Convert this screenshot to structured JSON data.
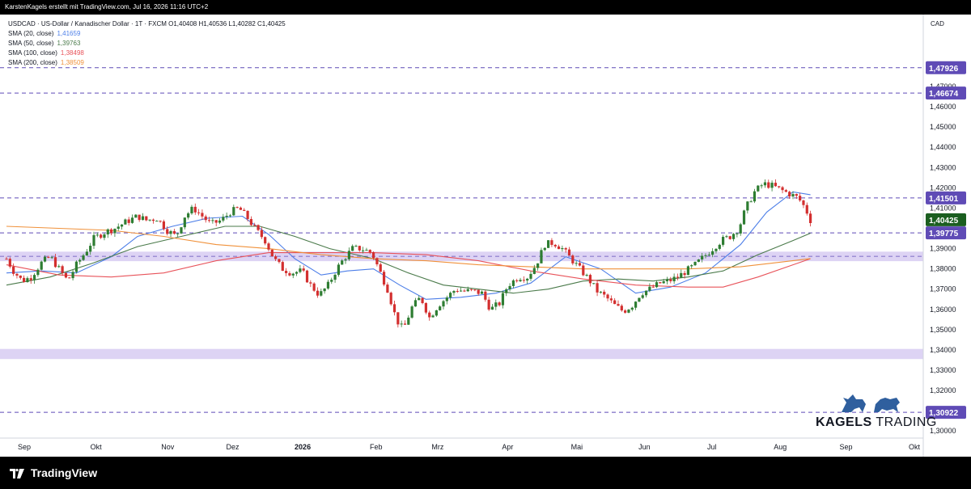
{
  "header": {
    "caption": "KarstenKagels erstellt mit TradingView.com, Jul 16, 2026 11:16 UTC+2"
  },
  "legend": {
    "symbol_line": "USDCAD · US-Dollar / Kanadischer Dollar · 1T · FXCM  O1,40408  H1,40536  L1,40282  C1,40425",
    "items": [
      {
        "label": "SMA (20, close)",
        "value": "1,41659",
        "color": "#4c7ee8"
      },
      {
        "label": "SMA (50, close)",
        "value": "1,39763",
        "color": "#4a7a4a"
      },
      {
        "label": "SMA (100, close)",
        "value": "1,38498",
        "color": "#e8535a"
      },
      {
        "label": "SMA (200, close)",
        "value": "1,38509",
        "color": "#f0913a"
      }
    ]
  },
  "brand": {
    "logo_text_bold": "KAGELS",
    "logo_text_thin": " TRADING",
    "platform": "TradingView"
  },
  "colors": {
    "up": "#26a69a",
    "down": "#ef5350",
    "up_candle": "#2e7d32",
    "down_candle": "#d32f2f",
    "zone": "#d1c4f0",
    "hline": "#5f4bb6"
  },
  "chart_data": {
    "type": "candlestick",
    "currency": "CAD",
    "ylim": [
      1.2965,
      1.5055
    ],
    "y_ticks": [
      "1,47000",
      "1,46000",
      "1,45000",
      "1,44000",
      "1,43000",
      "1,42000",
      "1,41000",
      "1,39000",
      "1,38000",
      "1,37000",
      "1,36000",
      "1,35000",
      "1,34000",
      "1,33000",
      "1,32000",
      "1,31000",
      "1,30000"
    ],
    "y_tick_values": [
      1.47,
      1.46,
      1.45,
      1.44,
      1.43,
      1.42,
      1.41,
      1.39,
      1.38,
      1.37,
      1.36,
      1.35,
      1.34,
      1.33,
      1.32,
      1.31,
      1.3
    ],
    "x_labels": [
      {
        "text": "Sep",
        "pos": 0.03,
        "bold": false
      },
      {
        "text": "Okt",
        "pos": 0.115,
        "bold": false
      },
      {
        "text": "Nov",
        "pos": 0.2,
        "bold": false
      },
      {
        "text": "Dez",
        "pos": 0.277,
        "bold": false
      },
      {
        "text": "2026",
        "pos": 0.36,
        "bold": true
      },
      {
        "text": "Feb",
        "pos": 0.447,
        "bold": false
      },
      {
        "text": "Mrz",
        "pos": 0.52,
        "bold": false
      },
      {
        "text": "Apr",
        "pos": 0.603,
        "bold": false
      },
      {
        "text": "Mai",
        "pos": 0.685,
        "bold": false
      },
      {
        "text": "Jun",
        "pos": 0.765,
        "bold": false
      },
      {
        "text": "Jul",
        "pos": 0.845,
        "bold": false
      },
      {
        "text": "Aug",
        "pos": 0.926,
        "bold": false
      },
      {
        "text": "Sep",
        "pos": 1.004,
        "bold": false
      },
      {
        "text": "Okt",
        "pos": 1.085,
        "bold": false
      }
    ],
    "levels": [
      {
        "value": 1.47926,
        "label": "1,47926"
      },
      {
        "value": 1.46674,
        "label": "1,46674"
      },
      {
        "value": 1.41501,
        "label": "1,41501"
      },
      {
        "value": 1.39775,
        "label": "1,39775"
      },
      {
        "value": 1.30922,
        "label": "1,30922"
      }
    ],
    "current_price": {
      "value": 1.40425,
      "label": "1,40425"
    },
    "zones": [
      {
        "from": 1.3838,
        "to": 1.3885
      },
      {
        "from": 1.3355,
        "to": 1.3405
      }
    ],
    "price_path": [
      [
        0.0,
        1.385
      ],
      [
        0.008,
        1.379
      ],
      [
        0.018,
        1.374
      ],
      [
        0.028,
        1.376
      ],
      [
        0.04,
        1.383
      ],
      [
        0.05,
        1.386
      ],
      [
        0.06,
        1.38
      ],
      [
        0.07,
        1.374
      ],
      [
        0.08,
        1.382
      ],
      [
        0.09,
        1.388
      ],
      [
        0.1,
        1.395
      ],
      [
        0.112,
        1.398
      ],
      [
        0.124,
        1.4
      ],
      [
        0.136,
        1.403
      ],
      [
        0.15,
        1.406
      ],
      [
        0.16,
        1.404
      ],
      [
        0.172,
        1.405
      ],
      [
        0.184,
        1.399
      ],
      [
        0.194,
        1.396
      ],
      [
        0.204,
        1.406
      ],
      [
        0.214,
        1.41
      ],
      [
        0.224,
        1.406
      ],
      [
        0.234,
        1.402
      ],
      [
        0.246,
        1.404
      ],
      [
        0.256,
        1.408
      ],
      [
        0.266,
        1.41
      ],
      [
        0.276,
        1.405
      ],
      [
        0.286,
        1.399
      ],
      [
        0.296,
        1.394
      ],
      [
        0.306,
        1.385
      ],
      [
        0.316,
        1.38
      ],
      [
        0.326,
        1.378
      ],
      [
        0.338,
        1.379
      ],
      [
        0.348,
        1.372
      ],
      [
        0.358,
        1.367
      ],
      [
        0.368,
        1.372
      ],
      [
        0.378,
        1.38
      ],
      [
        0.386,
        1.385
      ],
      [
        0.396,
        1.39
      ],
      [
        0.406,
        1.39
      ],
      [
        0.418,
        1.388
      ],
      [
        0.426,
        1.38
      ],
      [
        0.436,
        1.37
      ],
      [
        0.446,
        1.355
      ],
      [
        0.454,
        1.35
      ],
      [
        0.464,
        1.361
      ],
      [
        0.474,
        1.366
      ],
      [
        0.484,
        1.356
      ],
      [
        0.494,
        1.362
      ],
      [
        0.504,
        1.366
      ],
      [
        0.514,
        1.37
      ],
      [
        0.524,
        1.369
      ],
      [
        0.534,
        1.369
      ],
      [
        0.544,
        1.368
      ],
      [
        0.554,
        1.36
      ],
      [
        0.564,
        1.363
      ],
      [
        0.574,
        1.372
      ],
      [
        0.586,
        1.376
      ],
      [
        0.596,
        1.376
      ],
      [
        0.606,
        1.382
      ],
      [
        0.616,
        1.392
      ],
      [
        0.626,
        1.393
      ],
      [
        0.636,
        1.39
      ],
      [
        0.646,
        1.385
      ],
      [
        0.656,
        1.38
      ],
      [
        0.666,
        1.375
      ],
      [
        0.676,
        1.369
      ],
      [
        0.686,
        1.366
      ],
      [
        0.696,
        1.362
      ],
      [
        0.706,
        1.359
      ],
      [
        0.716,
        1.362
      ],
      [
        0.726,
        1.368
      ],
      [
        0.736,
        1.37
      ],
      [
        0.748,
        1.373
      ],
      [
        0.758,
        1.374
      ],
      [
        0.768,
        1.376
      ],
      [
        0.778,
        1.379
      ],
      [
        0.788,
        1.382
      ],
      [
        0.798,
        1.386
      ],
      [
        0.808,
        1.39
      ],
      [
        0.818,
        1.394
      ],
      [
        0.828,
        1.396
      ],
      [
        0.838,
        1.4
      ],
      [
        0.846,
        1.41
      ],
      [
        0.856,
        1.418
      ],
      [
        0.866,
        1.422
      ],
      [
        0.876,
        1.421
      ],
      [
        0.886,
        1.419
      ],
      [
        0.896,
        1.417
      ],
      [
        0.906,
        1.415
      ],
      [
        0.914,
        1.41
      ],
      [
        0.92,
        1.404
      ]
    ],
    "series": [
      {
        "name": "SMA (20, close)",
        "color": "#4c7ee8",
        "points": [
          [
            0.0,
            1.378
          ],
          [
            0.04,
            1.379
          ],
          [
            0.08,
            1.378
          ],
          [
            0.12,
            1.386
          ],
          [
            0.15,
            1.396
          ],
          [
            0.19,
            1.401
          ],
          [
            0.23,
            1.405
          ],
          [
            0.27,
            1.406
          ],
          [
            0.3,
            1.397
          ],
          [
            0.33,
            1.385
          ],
          [
            0.36,
            1.377
          ],
          [
            0.39,
            1.379
          ],
          [
            0.42,
            1.38
          ],
          [
            0.45,
            1.372
          ],
          [
            0.48,
            1.365
          ],
          [
            0.52,
            1.366
          ],
          [
            0.56,
            1.368
          ],
          [
            0.6,
            1.373
          ],
          [
            0.64,
            1.386
          ],
          [
            0.68,
            1.38
          ],
          [
            0.72,
            1.368
          ],
          [
            0.76,
            1.371
          ],
          [
            0.8,
            1.378
          ],
          [
            0.84,
            1.392
          ],
          [
            0.87,
            1.408
          ],
          [
            0.9,
            1.418
          ],
          [
            0.92,
            1.4166
          ]
        ]
      },
      {
        "name": "SMA (50, close)",
        "color": "#4a7a4a",
        "points": [
          [
            0.0,
            1.372
          ],
          [
            0.05,
            1.376
          ],
          [
            0.1,
            1.383
          ],
          [
            0.15,
            1.391
          ],
          [
            0.2,
            1.396
          ],
          [
            0.25,
            1.401
          ],
          [
            0.29,
            1.401
          ],
          [
            0.33,
            1.396
          ],
          [
            0.37,
            1.39
          ],
          [
            0.42,
            1.385
          ],
          [
            0.46,
            1.378
          ],
          [
            0.5,
            1.372
          ],
          [
            0.54,
            1.37
          ],
          [
            0.58,
            1.368
          ],
          [
            0.62,
            1.37
          ],
          [
            0.66,
            1.374
          ],
          [
            0.7,
            1.375
          ],
          [
            0.74,
            1.374
          ],
          [
            0.78,
            1.376
          ],
          [
            0.82,
            1.379
          ],
          [
            0.86,
            1.387
          ],
          [
            0.9,
            1.394
          ],
          [
            0.92,
            1.3976
          ]
        ]
      },
      {
        "name": "SMA (100, close)",
        "color": "#e8535a",
        "points": [
          [
            0.0,
            1.382
          ],
          [
            0.06,
            1.377
          ],
          [
            0.12,
            1.376
          ],
          [
            0.18,
            1.378
          ],
          [
            0.24,
            1.384
          ],
          [
            0.3,
            1.388
          ],
          [
            0.36,
            1.388
          ],
          [
            0.42,
            1.388
          ],
          [
            0.48,
            1.387
          ],
          [
            0.54,
            1.384
          ],
          [
            0.6,
            1.379
          ],
          [
            0.66,
            1.375
          ],
          [
            0.72,
            1.372
          ],
          [
            0.78,
            1.371
          ],
          [
            0.82,
            1.371
          ],
          [
            0.86,
            1.376
          ],
          [
            0.9,
            1.382
          ],
          [
            0.92,
            1.385
          ]
        ]
      },
      {
        "name": "SMA (200, close)",
        "color": "#f0913a",
        "points": [
          [
            0.0,
            1.401
          ],
          [
            0.06,
            1.4
          ],
          [
            0.12,
            1.399
          ],
          [
            0.18,
            1.396
          ],
          [
            0.24,
            1.392
          ],
          [
            0.3,
            1.39
          ],
          [
            0.36,
            1.387
          ],
          [
            0.42,
            1.385
          ],
          [
            0.48,
            1.384
          ],
          [
            0.54,
            1.382
          ],
          [
            0.6,
            1.381
          ],
          [
            0.66,
            1.38
          ],
          [
            0.72,
            1.38
          ],
          [
            0.78,
            1.38
          ],
          [
            0.84,
            1.381
          ],
          [
            0.88,
            1.383
          ],
          [
            0.92,
            1.3851
          ]
        ]
      }
    ]
  }
}
